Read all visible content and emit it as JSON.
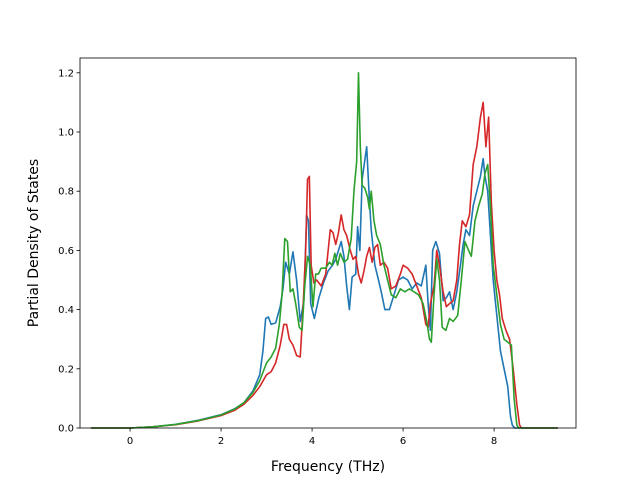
{
  "chart_data": {
    "type": "line",
    "title": "",
    "xlabel": "Frequency (THz)",
    "ylabel": "Partial Density of States",
    "xlim": [
      -1.1,
      9.8
    ],
    "ylim": [
      0,
      1.25
    ],
    "x_ticks": [
      0,
      2,
      4,
      6,
      8
    ],
    "y_ticks": [
      0.0,
      0.2,
      0.4,
      0.6,
      0.8,
      1.0,
      1.2
    ],
    "x_tick_labels": [
      "0",
      "2",
      "4",
      "6",
      "8"
    ],
    "y_tick_labels": [
      "0.0",
      "0.2",
      "0.4",
      "0.6",
      "0.8",
      "1.0",
      "1.2"
    ],
    "grid": false,
    "legend": "none",
    "series": [
      {
        "color": "#1f77b4",
        "points": [
          [
            -0.86,
            0.0
          ],
          [
            0.0,
            0.0
          ],
          [
            0.5,
            0.004
          ],
          [
            1.0,
            0.012
          ],
          [
            1.5,
            0.026
          ],
          [
            2.0,
            0.045
          ],
          [
            2.3,
            0.065
          ],
          [
            2.5,
            0.085
          ],
          [
            2.7,
            0.125
          ],
          [
            2.85,
            0.18
          ],
          [
            2.92,
            0.26
          ],
          [
            2.98,
            0.37
          ],
          [
            3.04,
            0.375
          ],
          [
            3.1,
            0.35
          ],
          [
            3.2,
            0.355
          ],
          [
            3.3,
            0.41
          ],
          [
            3.36,
            0.47
          ],
          [
            3.42,
            0.56
          ],
          [
            3.5,
            0.52
          ],
          [
            3.58,
            0.595
          ],
          [
            3.66,
            0.5
          ],
          [
            3.74,
            0.36
          ],
          [
            3.82,
            0.43
          ],
          [
            3.88,
            0.72
          ],
          [
            3.92,
            0.7
          ],
          [
            3.97,
            0.42
          ],
          [
            4.05,
            0.37
          ],
          [
            4.15,
            0.44
          ],
          [
            4.25,
            0.49
          ],
          [
            4.35,
            0.53
          ],
          [
            4.45,
            0.55
          ],
          [
            4.52,
            0.57
          ],
          [
            4.58,
            0.6
          ],
          [
            4.64,
            0.63
          ],
          [
            4.7,
            0.58
          ],
          [
            4.76,
            0.48
          ],
          [
            4.82,
            0.4
          ],
          [
            4.88,
            0.51
          ],
          [
            4.96,
            0.52
          ],
          [
            5.0,
            0.68
          ],
          [
            5.05,
            0.6
          ],
          [
            5.1,
            0.84
          ],
          [
            5.2,
            0.95
          ],
          [
            5.26,
            0.77
          ],
          [
            5.3,
            0.67
          ],
          [
            5.38,
            0.55
          ],
          [
            5.46,
            0.5
          ],
          [
            5.52,
            0.46
          ],
          [
            5.6,
            0.4
          ],
          [
            5.7,
            0.4
          ],
          [
            5.8,
            0.45
          ],
          [
            5.9,
            0.5
          ],
          [
            6.0,
            0.51
          ],
          [
            6.1,
            0.5
          ],
          [
            6.2,
            0.47
          ],
          [
            6.3,
            0.49
          ],
          [
            6.4,
            0.48
          ],
          [
            6.5,
            0.55
          ],
          [
            6.55,
            0.42
          ],
          [
            6.6,
            0.33
          ],
          [
            6.65,
            0.6
          ],
          [
            6.72,
            0.63
          ],
          [
            6.8,
            0.59
          ],
          [
            6.88,
            0.43
          ],
          [
            6.95,
            0.44
          ],
          [
            7.02,
            0.46
          ],
          [
            7.1,
            0.4
          ],
          [
            7.18,
            0.46
          ],
          [
            7.26,
            0.55
          ],
          [
            7.32,
            0.62
          ],
          [
            7.38,
            0.67
          ],
          [
            7.46,
            0.65
          ],
          [
            7.54,
            0.75
          ],
          [
            7.62,
            0.8
          ],
          [
            7.7,
            0.85
          ],
          [
            7.76,
            0.91
          ],
          [
            7.8,
            0.85
          ],
          [
            7.86,
            0.8
          ],
          [
            7.92,
            0.65
          ],
          [
            7.98,
            0.5
          ],
          [
            8.06,
            0.38
          ],
          [
            8.14,
            0.26
          ],
          [
            8.22,
            0.2
          ],
          [
            8.3,
            0.14
          ],
          [
            8.36,
            0.04
          ],
          [
            8.4,
            0.01
          ],
          [
            8.45,
            0.0
          ],
          [
            9.4,
            0.0
          ]
        ]
      },
      {
        "color": "#d62728",
        "points": [
          [
            -0.86,
            0.0
          ],
          [
            0.0,
            0.0
          ],
          [
            0.5,
            0.004
          ],
          [
            1.0,
            0.011
          ],
          [
            1.5,
            0.024
          ],
          [
            2.0,
            0.042
          ],
          [
            2.3,
            0.06
          ],
          [
            2.5,
            0.08
          ],
          [
            2.7,
            0.11
          ],
          [
            2.85,
            0.14
          ],
          [
            3.0,
            0.18
          ],
          [
            3.1,
            0.19
          ],
          [
            3.2,
            0.22
          ],
          [
            3.3,
            0.28
          ],
          [
            3.38,
            0.35
          ],
          [
            3.44,
            0.35
          ],
          [
            3.5,
            0.3
          ],
          [
            3.58,
            0.28
          ],
          [
            3.66,
            0.245
          ],
          [
            3.74,
            0.24
          ],
          [
            3.8,
            0.4
          ],
          [
            3.86,
            0.6
          ],
          [
            3.9,
            0.84
          ],
          [
            3.94,
            0.85
          ],
          [
            3.98,
            0.55
          ],
          [
            4.04,
            0.49
          ],
          [
            4.1,
            0.5
          ],
          [
            4.2,
            0.48
          ],
          [
            4.3,
            0.52
          ],
          [
            4.4,
            0.67
          ],
          [
            4.46,
            0.66
          ],
          [
            4.52,
            0.62
          ],
          [
            4.58,
            0.66
          ],
          [
            4.64,
            0.72
          ],
          [
            4.7,
            0.67
          ],
          [
            4.76,
            0.65
          ],
          [
            4.84,
            0.6
          ],
          [
            4.9,
            0.57
          ],
          [
            4.96,
            0.58
          ],
          [
            5.02,
            0.52
          ],
          [
            5.08,
            0.49
          ],
          [
            5.14,
            0.53
          ],
          [
            5.2,
            0.58
          ],
          [
            5.26,
            0.61
          ],
          [
            5.32,
            0.56
          ],
          [
            5.38,
            0.61
          ],
          [
            5.44,
            0.62
          ],
          [
            5.5,
            0.55
          ],
          [
            5.58,
            0.56
          ],
          [
            5.66,
            0.54
          ],
          [
            5.74,
            0.47
          ],
          [
            5.84,
            0.48
          ],
          [
            5.94,
            0.52
          ],
          [
            6.0,
            0.55
          ],
          [
            6.1,
            0.54
          ],
          [
            6.2,
            0.52
          ],
          [
            6.3,
            0.48
          ],
          [
            6.4,
            0.44
          ],
          [
            6.5,
            0.35
          ],
          [
            6.55,
            0.34
          ],
          [
            6.6,
            0.42
          ],
          [
            6.68,
            0.48
          ],
          [
            6.74,
            0.6
          ],
          [
            6.8,
            0.55
          ],
          [
            6.88,
            0.46
          ],
          [
            6.95,
            0.41
          ],
          [
            7.02,
            0.42
          ],
          [
            7.1,
            0.43
          ],
          [
            7.18,
            0.5
          ],
          [
            7.24,
            0.62
          ],
          [
            7.3,
            0.7
          ],
          [
            7.38,
            0.68
          ],
          [
            7.46,
            0.72
          ],
          [
            7.54,
            0.89
          ],
          [
            7.62,
            0.95
          ],
          [
            7.7,
            1.05
          ],
          [
            7.76,
            1.1
          ],
          [
            7.82,
            0.95
          ],
          [
            7.88,
            1.05
          ],
          [
            7.94,
            0.76
          ],
          [
            8.0,
            0.6
          ],
          [
            8.06,
            0.5
          ],
          [
            8.12,
            0.45
          ],
          [
            8.18,
            0.37
          ],
          [
            8.26,
            0.33
          ],
          [
            8.34,
            0.3
          ],
          [
            8.42,
            0.2
          ],
          [
            8.5,
            0.08
          ],
          [
            8.56,
            0.01
          ],
          [
            8.6,
            0.0
          ],
          [
            9.4,
            0.0
          ]
        ]
      },
      {
        "color": "#2ca02c",
        "points": [
          [
            -0.86,
            0.0
          ],
          [
            0.0,
            0.0
          ],
          [
            0.5,
            0.004
          ],
          [
            1.0,
            0.012
          ],
          [
            1.5,
            0.025
          ],
          [
            2.0,
            0.044
          ],
          [
            2.3,
            0.064
          ],
          [
            2.5,
            0.085
          ],
          [
            2.7,
            0.12
          ],
          [
            2.85,
            0.16
          ],
          [
            3.0,
            0.22
          ],
          [
            3.1,
            0.24
          ],
          [
            3.2,
            0.27
          ],
          [
            3.28,
            0.35
          ],
          [
            3.34,
            0.45
          ],
          [
            3.4,
            0.64
          ],
          [
            3.46,
            0.63
          ],
          [
            3.52,
            0.46
          ],
          [
            3.58,
            0.47
          ],
          [
            3.64,
            0.42
          ],
          [
            3.72,
            0.34
          ],
          [
            3.78,
            0.33
          ],
          [
            3.84,
            0.48
          ],
          [
            3.9,
            0.58
          ],
          [
            3.96,
            0.55
          ],
          [
            4.02,
            0.41
          ],
          [
            4.08,
            0.52
          ],
          [
            4.14,
            0.52
          ],
          [
            4.2,
            0.54
          ],
          [
            4.3,
            0.54
          ],
          [
            4.38,
            0.56
          ],
          [
            4.44,
            0.55
          ],
          [
            4.5,
            0.59
          ],
          [
            4.56,
            0.55
          ],
          [
            4.62,
            0.59
          ],
          [
            4.7,
            0.56
          ],
          [
            4.78,
            0.57
          ],
          [
            4.86,
            0.64
          ],
          [
            4.92,
            0.8
          ],
          [
            4.98,
            0.9
          ],
          [
            5.02,
            1.2
          ],
          [
            5.06,
            0.95
          ],
          [
            5.1,
            0.82
          ],
          [
            5.16,
            0.81
          ],
          [
            5.22,
            0.78
          ],
          [
            5.26,
            0.74
          ],
          [
            5.3,
            0.8
          ],
          [
            5.36,
            0.7
          ],
          [
            5.42,
            0.65
          ],
          [
            5.5,
            0.62
          ],
          [
            5.58,
            0.55
          ],
          [
            5.66,
            0.5
          ],
          [
            5.74,
            0.45
          ],
          [
            5.84,
            0.44
          ],
          [
            5.94,
            0.47
          ],
          [
            6.04,
            0.46
          ],
          [
            6.14,
            0.47
          ],
          [
            6.24,
            0.46
          ],
          [
            6.34,
            0.45
          ],
          [
            6.44,
            0.42
          ],
          [
            6.52,
            0.36
          ],
          [
            6.58,
            0.3
          ],
          [
            6.62,
            0.29
          ],
          [
            6.68,
            0.45
          ],
          [
            6.74,
            0.57
          ],
          [
            6.8,
            0.5
          ],
          [
            6.86,
            0.34
          ],
          [
            6.94,
            0.33
          ],
          [
            7.02,
            0.37
          ],
          [
            7.1,
            0.36
          ],
          [
            7.2,
            0.38
          ],
          [
            7.28,
            0.5
          ],
          [
            7.36,
            0.63
          ],
          [
            7.44,
            0.6
          ],
          [
            7.5,
            0.58
          ],
          [
            7.58,
            0.7
          ],
          [
            7.66,
            0.75
          ],
          [
            7.74,
            0.79
          ],
          [
            7.8,
            0.86
          ],
          [
            7.86,
            0.89
          ],
          [
            7.92,
            0.75
          ],
          [
            7.98,
            0.55
          ],
          [
            8.06,
            0.45
          ],
          [
            8.14,
            0.35
          ],
          [
            8.22,
            0.3
          ],
          [
            8.3,
            0.29
          ],
          [
            8.38,
            0.28
          ],
          [
            8.44,
            0.1
          ],
          [
            8.5,
            0.01
          ],
          [
            8.54,
            0.0
          ],
          [
            9.4,
            0.0
          ]
        ]
      }
    ]
  }
}
